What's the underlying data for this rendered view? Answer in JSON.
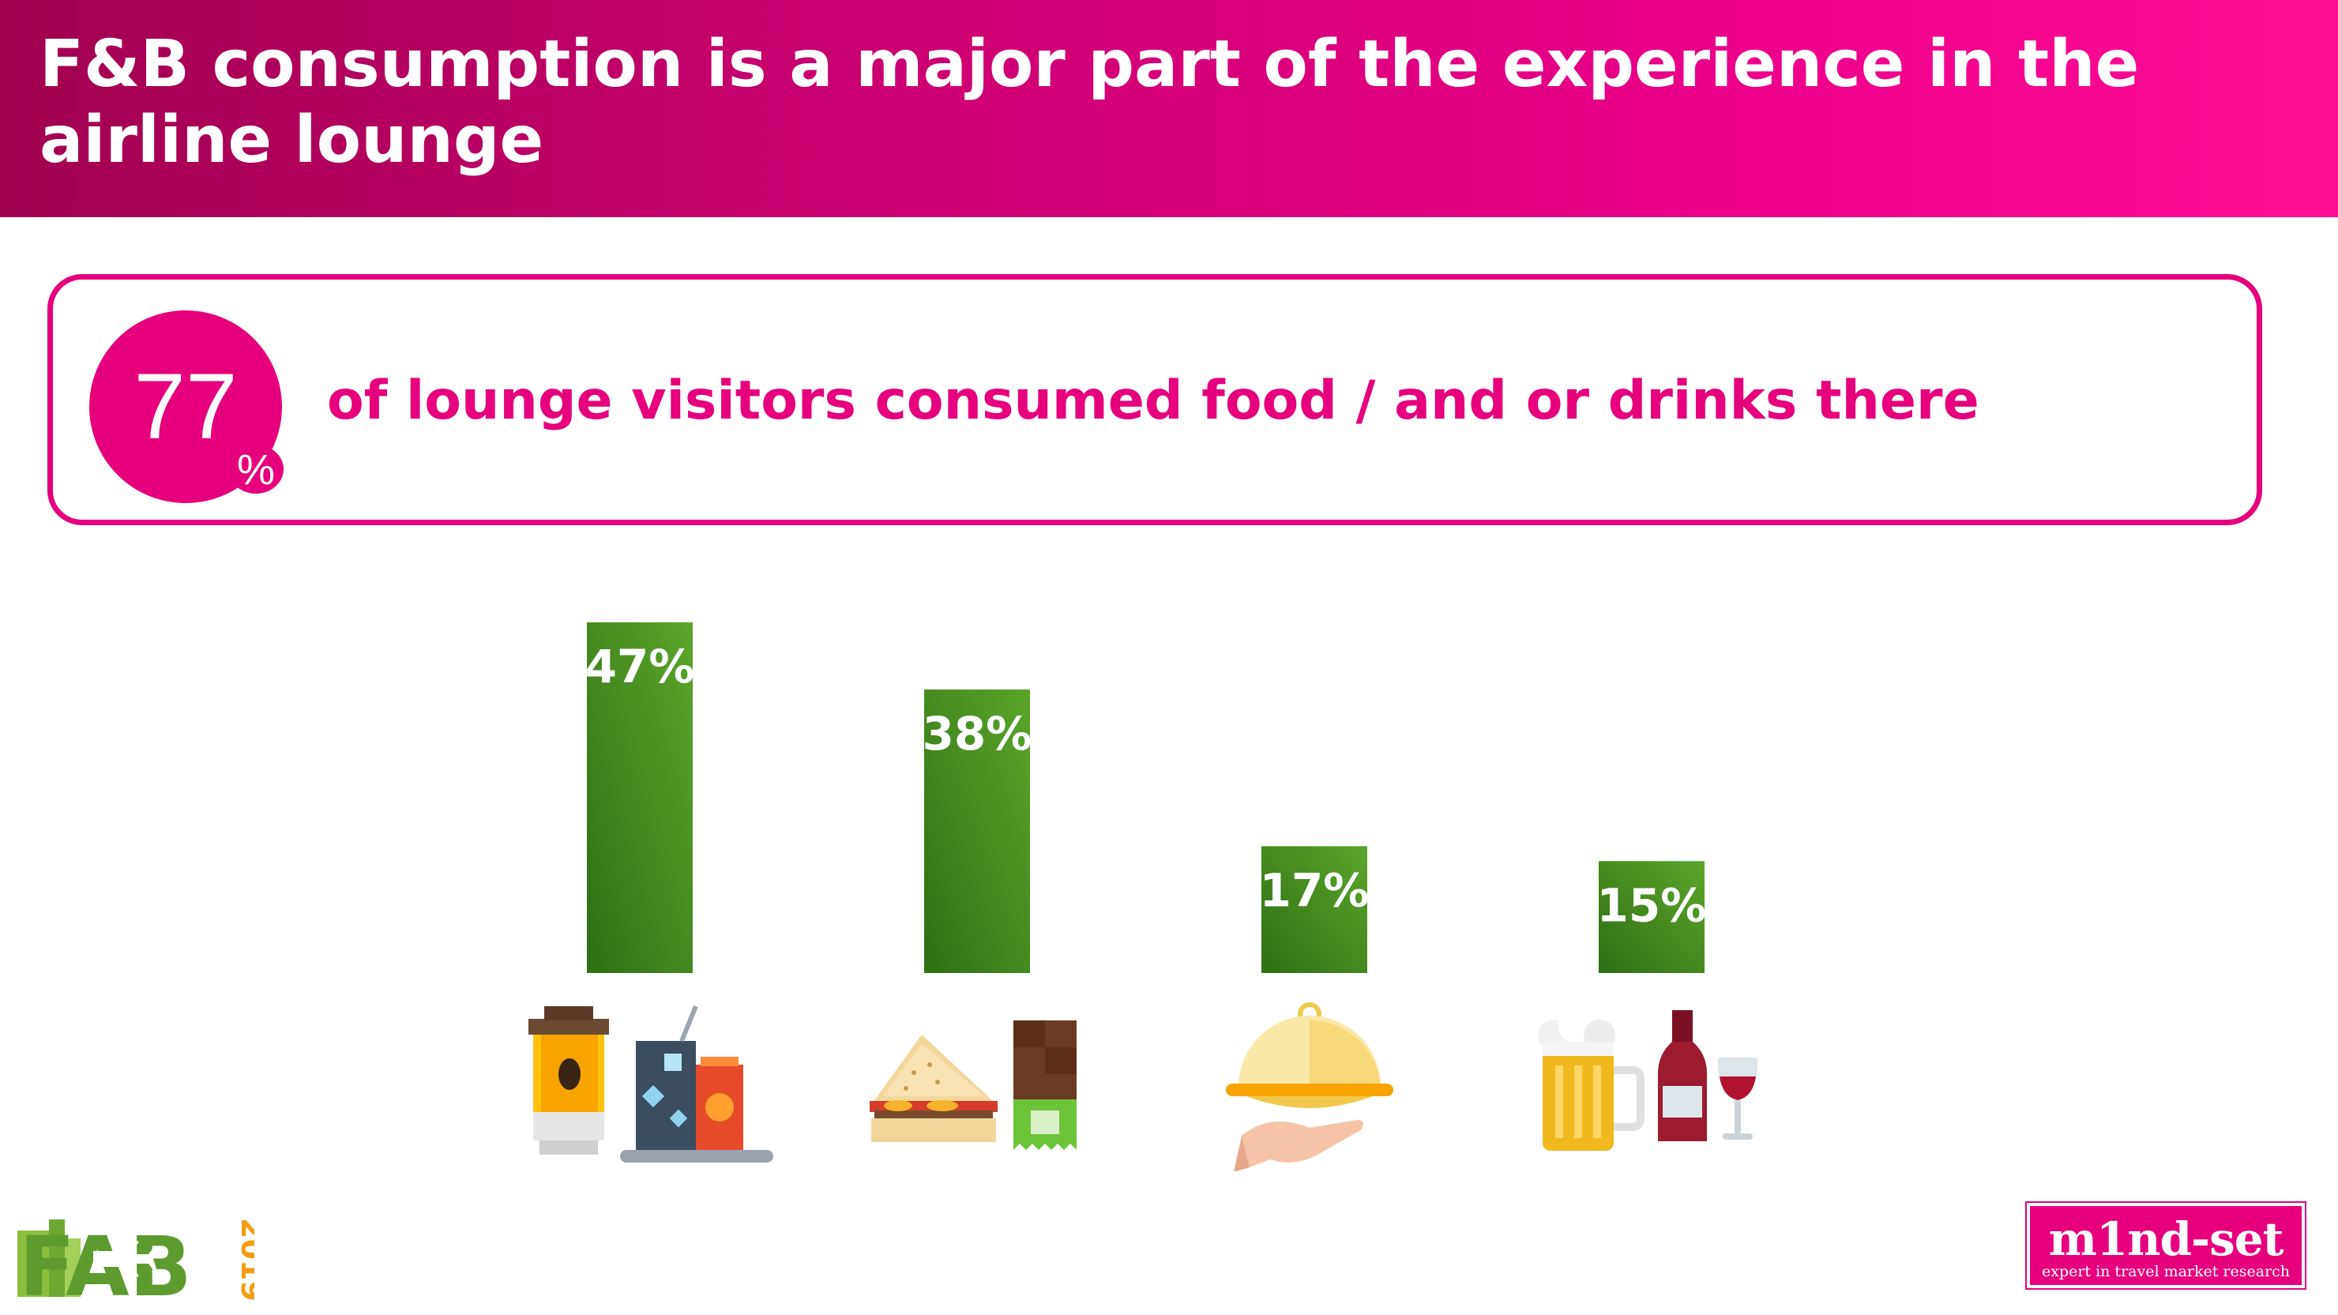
{
  "header": {
    "title": "F&B consumption is a major part of the experience in the airline lounge"
  },
  "highlight": {
    "value": "77",
    "unit": "%",
    "text": "of lounge visitors consumed food / and or drinks there"
  },
  "chart_data": {
    "type": "bar",
    "categories": [
      "",
      "",
      "",
      ""
    ],
    "values": [
      47,
      38,
      17,
      15
    ],
    "data_labels": [
      "47%",
      "38%",
      "17%",
      "15%"
    ],
    "ylim": [
      0,
      47
    ],
    "grid": false,
    "bar_color": "#3f8c1e"
  },
  "icons": [
    "coffee-and-soda-icon",
    "sandwich-and-chocolate-icon",
    "cloche-meal-icon",
    "beer-and-wine-icon"
  ],
  "logos": {
    "fab": {
      "text": "FAB",
      "year": "2019"
    },
    "mindset": {
      "word": "m1nd-set",
      "tagline": "expert in travel market research"
    }
  },
  "colors": {
    "accent": "#e6007e",
    "bar": "#3f8c1e",
    "header_start": "#a1004f",
    "header_end": "#ff0d96"
  }
}
